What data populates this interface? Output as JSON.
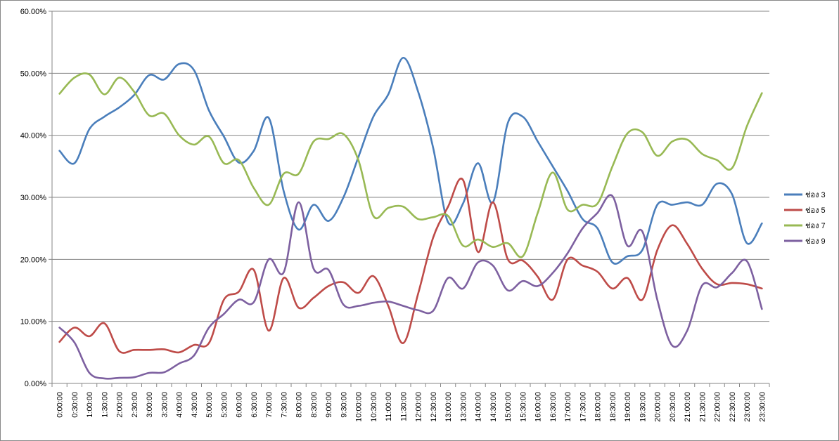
{
  "chart_data": {
    "type": "line",
    "title": "",
    "xlabel": "",
    "ylabel": "",
    "ylim": [
      0,
      0.6
    ],
    "yticks": [
      "0.00%",
      "10.00%",
      "20.00%",
      "30.00%",
      "40.00%",
      "50.00%",
      "60.00%"
    ],
    "grid": "horizontal",
    "legend_position": "right",
    "categories": [
      "0:00:00",
      "0:30:00",
      "1:00:00",
      "1:30:00",
      "2:00:00",
      "2:30:00",
      "3:00:00",
      "3:30:00",
      "4:00:00",
      "4:30:00",
      "5:00:00",
      "5:30:00",
      "6:00:00",
      "6:30:00",
      "7:00:00",
      "7:30:00",
      "8:00:00",
      "8:30:00",
      "9:00:00",
      "9:30:00",
      "10:00:00",
      "10:30:00",
      "11:00:00",
      "11:30:00",
      "12:00:00",
      "12:30:00",
      "13:00:00",
      "13:30:00",
      "14:00:00",
      "14:30:00",
      "15:00:00",
      "15:30:00",
      "16:00:00",
      "16:30:00",
      "17:00:00",
      "17:30:00",
      "18:00:00",
      "18:30:00",
      "19:00:00",
      "19:30:00",
      "20:00:00",
      "20:30:00",
      "21:00:00",
      "21:30:00",
      "22:00:00",
      "22:30:00",
      "23:00:00",
      "23:30:00"
    ],
    "series": [
      {
        "name": "ช่อง 3",
        "color": "#4A7EBB",
        "values": [
          0.375,
          0.355,
          0.41,
          0.43,
          0.445,
          0.465,
          0.497,
          0.49,
          0.515,
          0.505,
          0.44,
          0.398,
          0.356,
          0.375,
          0.428,
          0.31,
          0.248,
          0.288,
          0.262,
          0.3,
          0.365,
          0.43,
          0.466,
          0.525,
          0.47,
          0.38,
          0.26,
          0.29,
          0.355,
          0.292,
          0.42,
          0.43,
          0.39,
          0.35,
          0.31,
          0.265,
          0.25,
          0.195,
          0.205,
          0.215,
          0.288,
          0.288,
          0.292,
          0.288,
          0.322,
          0.305,
          0.226,
          0.258
        ]
      },
      {
        "name": "ช่อง 5",
        "color": "#BE4B48",
        "values": [
          0.067,
          0.09,
          0.076,
          0.097,
          0.052,
          0.054,
          0.054,
          0.055,
          0.05,
          0.062,
          0.065,
          0.135,
          0.148,
          0.183,
          0.085,
          0.17,
          0.122,
          0.138,
          0.157,
          0.163,
          0.146,
          0.173,
          0.125,
          0.065,
          0.145,
          0.235,
          0.285,
          0.328,
          0.212,
          0.292,
          0.2,
          0.198,
          0.172,
          0.135,
          0.2,
          0.19,
          0.18,
          0.153,
          0.17,
          0.135,
          0.215,
          0.255,
          0.225,
          0.185,
          0.16,
          0.162,
          0.16,
          0.153
        ]
      },
      {
        "name": "ช่อง 7",
        "color": "#98B954",
        "values": [
          0.467,
          0.493,
          0.498,
          0.466,
          0.493,
          0.47,
          0.432,
          0.435,
          0.4,
          0.385,
          0.398,
          0.355,
          0.36,
          0.315,
          0.288,
          0.338,
          0.338,
          0.39,
          0.394,
          0.402,
          0.36,
          0.27,
          0.283,
          0.285,
          0.265,
          0.268,
          0.27,
          0.222,
          0.232,
          0.22,
          0.226,
          0.205,
          0.275,
          0.34,
          0.28,
          0.288,
          0.29,
          0.35,
          0.403,
          0.405,
          0.367,
          0.39,
          0.393,
          0.37,
          0.36,
          0.347,
          0.415,
          0.468
        ]
      },
      {
        "name": "ช่อง 9",
        "color": "#7D60A0",
        "values": [
          0.09,
          0.066,
          0.017,
          0.008,
          0.009,
          0.01,
          0.017,
          0.018,
          0.032,
          0.045,
          0.09,
          0.112,
          0.135,
          0.131,
          0.2,
          0.179,
          0.292,
          0.185,
          0.183,
          0.127,
          0.125,
          0.13,
          0.132,
          0.125,
          0.118,
          0.117,
          0.17,
          0.153,
          0.195,
          0.19,
          0.15,
          0.165,
          0.157,
          0.178,
          0.21,
          0.25,
          0.275,
          0.302,
          0.222,
          0.245,
          0.135,
          0.061,
          0.085,
          0.158,
          0.155,
          0.178,
          0.197,
          0.12
        ]
      }
    ]
  }
}
